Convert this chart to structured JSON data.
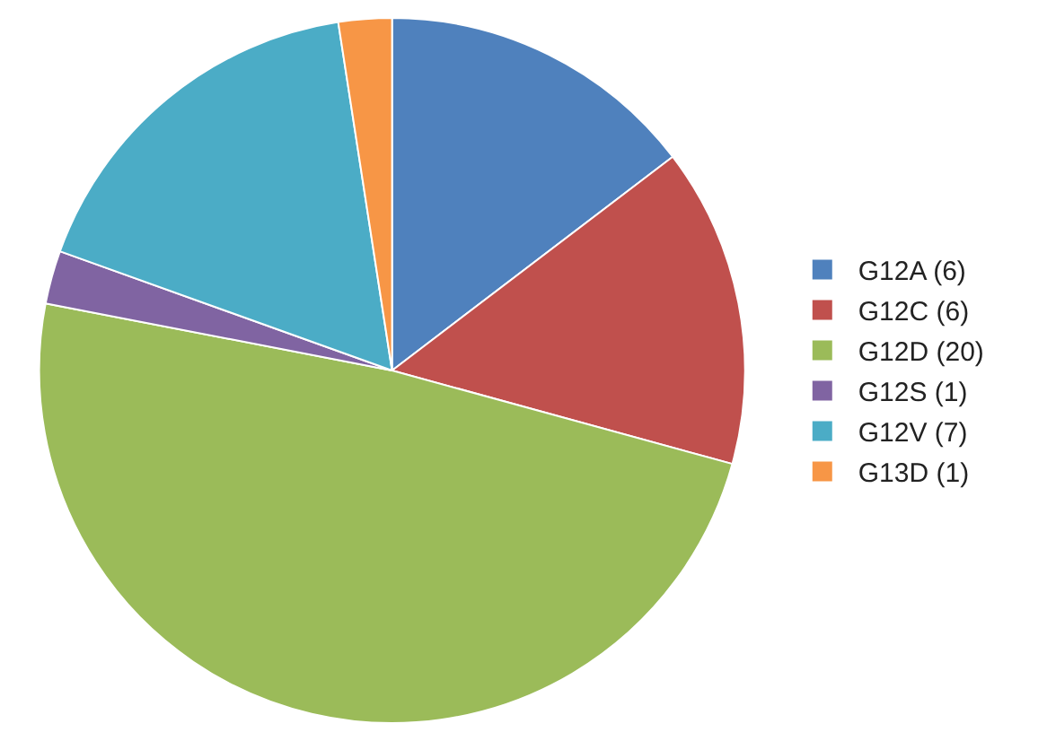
{
  "chart_data": {
    "type": "pie",
    "categories": [
      "G12A (6)",
      "G12C (6)",
      "G12D (20)",
      "G12S (1)",
      "G12V (7)",
      "G13D (1)"
    ],
    "values": [
      6,
      6,
      20,
      1,
      7,
      1
    ],
    "colors": [
      "#4f81bd",
      "#c0504d",
      "#9bbb59",
      "#8064a2",
      "#4bacc6",
      "#f79646"
    ],
    "legend": "right"
  }
}
